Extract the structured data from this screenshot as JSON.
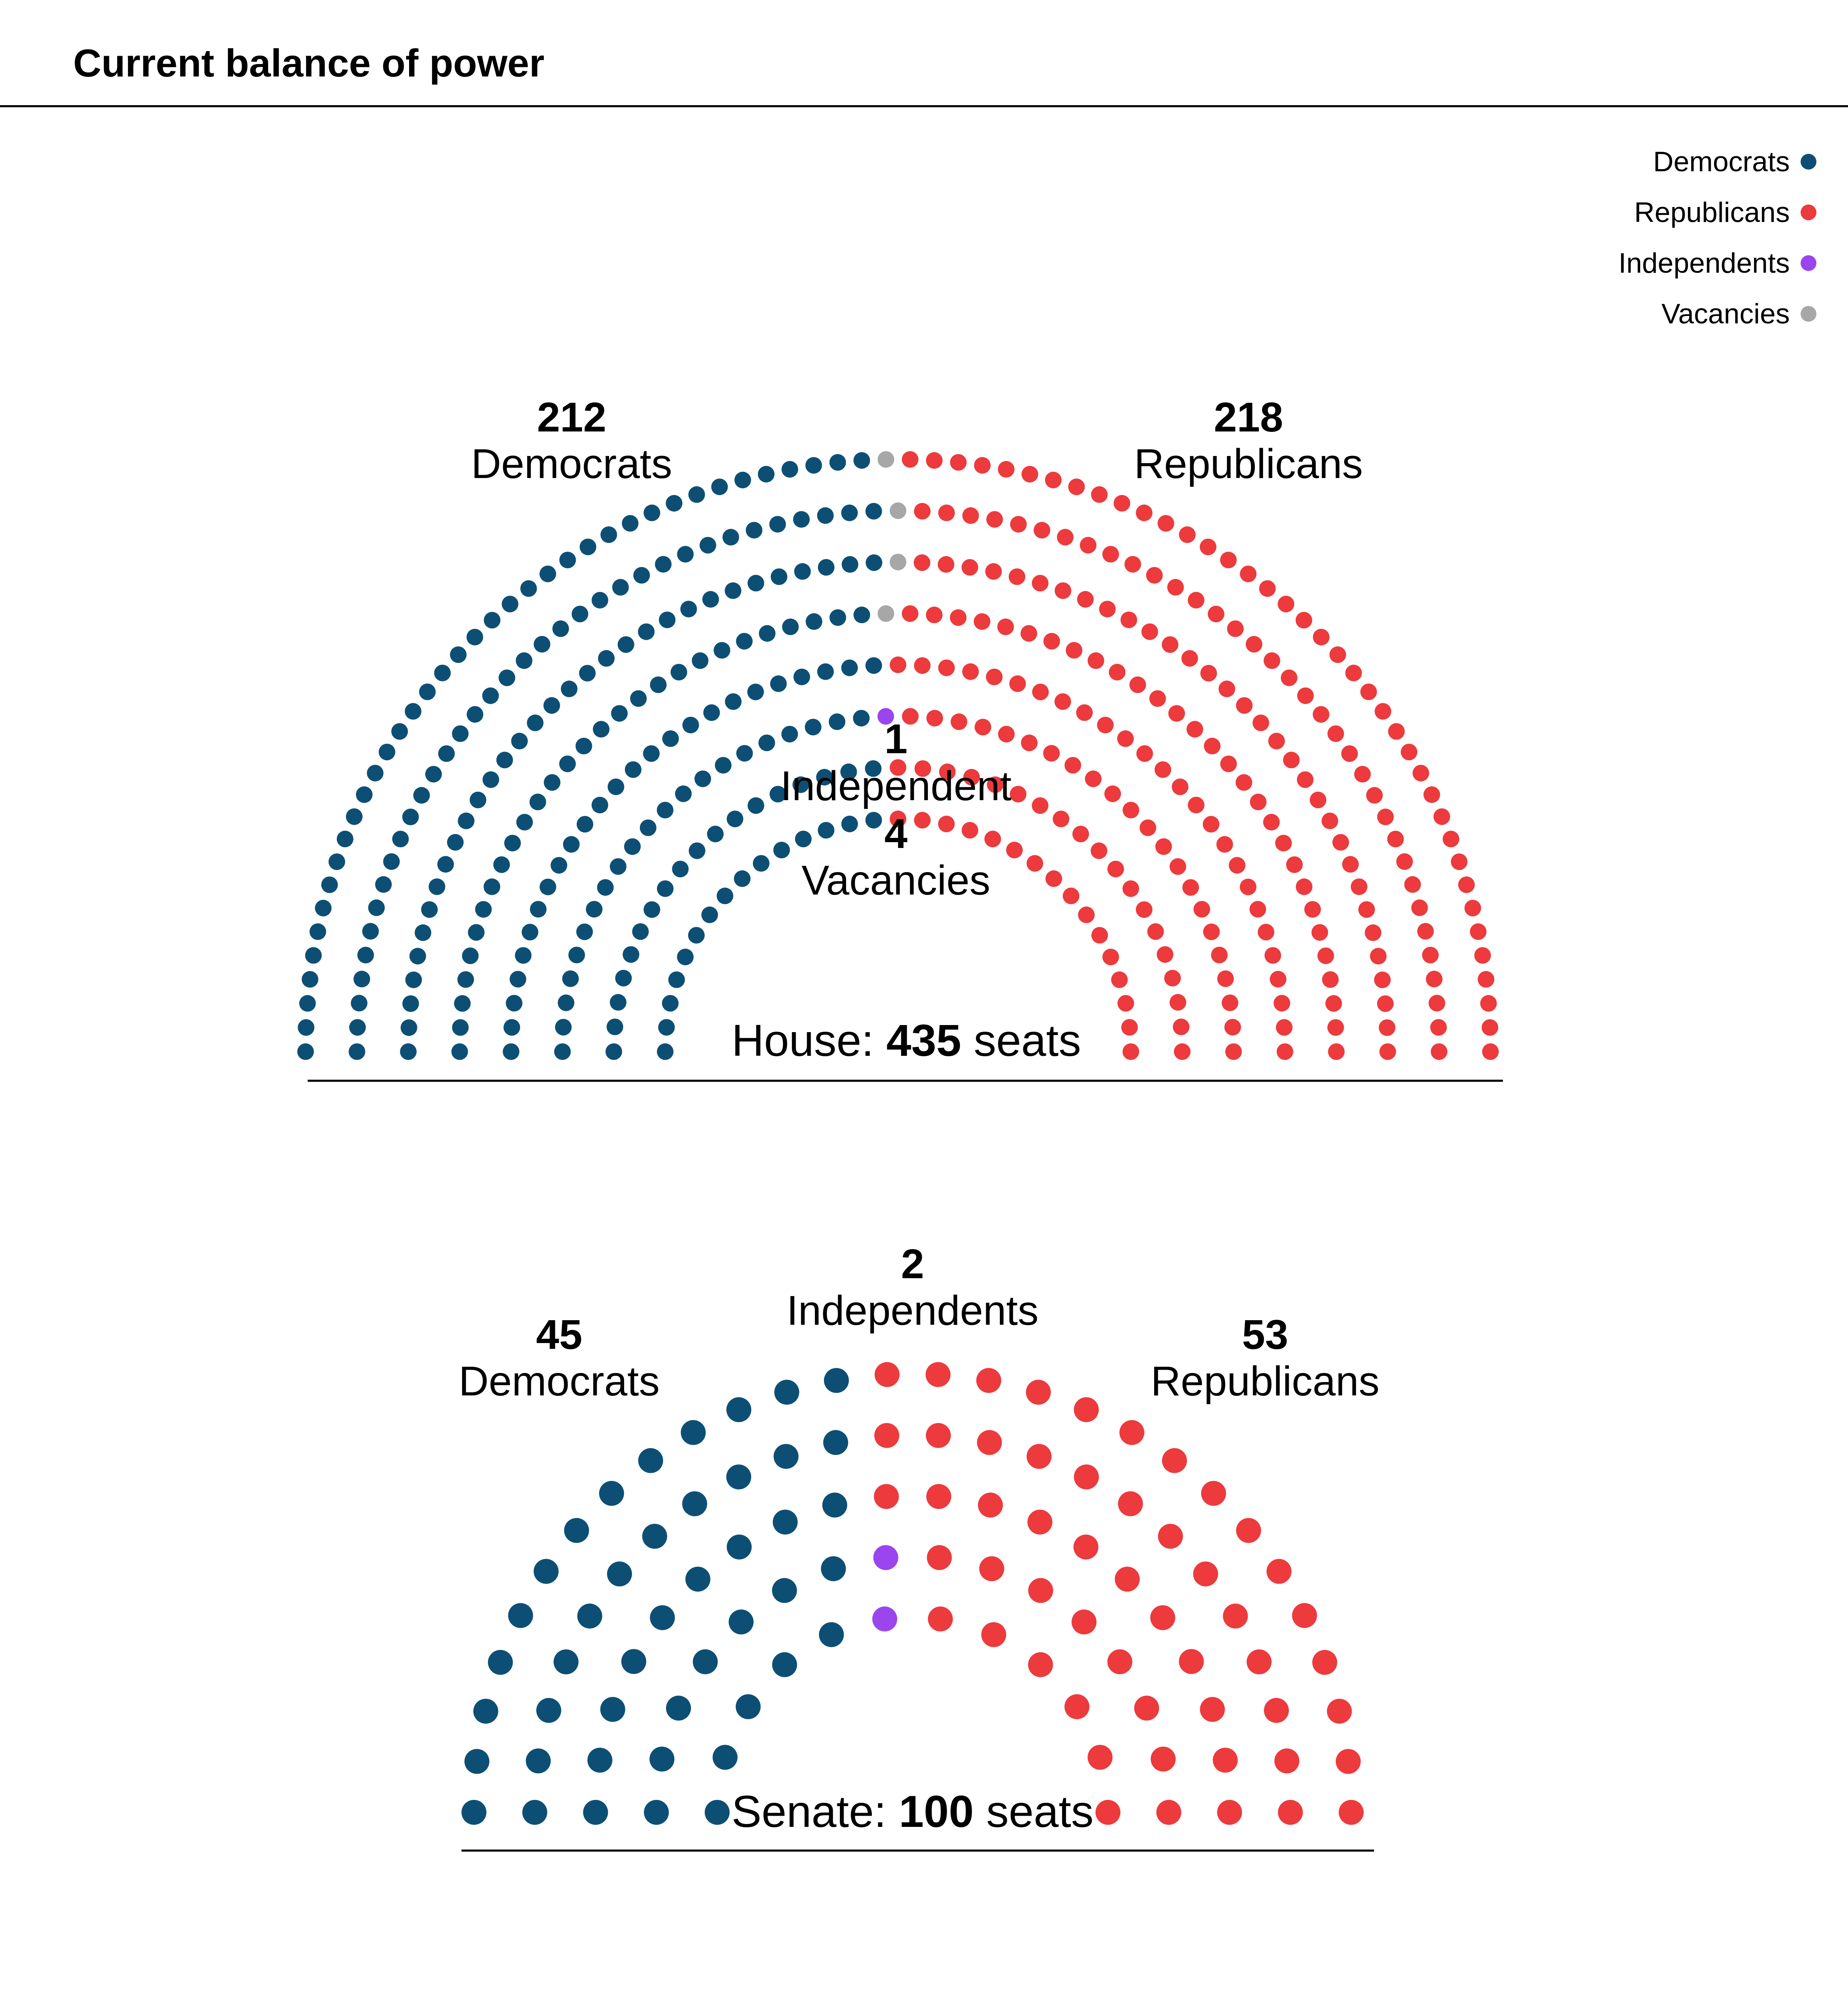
{
  "page": {
    "title": "Current balance of power"
  },
  "legend": [
    {
      "label": "Democrats",
      "color": "#0d4f74"
    },
    {
      "label": "Republicans",
      "color": "#ec3a3d"
    },
    {
      "label": "Independents",
      "color": "#9a45ee"
    },
    {
      "label": "Vacancies",
      "color": "#a7a7a7"
    }
  ],
  "chart_data": [
    {
      "type": "parliament",
      "chamber": "House",
      "total_label_prefix": "House: ",
      "total_seats": 435,
      "total_label_suffix": " seats",
      "series": [
        {
          "name": "Democrats",
          "count": 212,
          "color": "#0d4f74"
        },
        {
          "name": "Independent",
          "count": 1,
          "color": "#9a45ee"
        },
        {
          "name": "Vacancies",
          "count": 4,
          "color": "#a7a7a7"
        },
        {
          "name": "Republicans",
          "count": 218,
          "color": "#ec3a3d"
        }
      ]
    },
    {
      "type": "parliament",
      "chamber": "Senate",
      "total_label_prefix": "Senate: ",
      "total_seats": 100,
      "total_label_suffix": " seats",
      "series": [
        {
          "name": "Democrats",
          "count": 45,
          "color": "#0d4f74"
        },
        {
          "name": "Independents",
          "count": 2,
          "color": "#9a45ee"
        },
        {
          "name": "Republicans",
          "count": 53,
          "color": "#ec3a3d"
        }
      ]
    }
  ]
}
